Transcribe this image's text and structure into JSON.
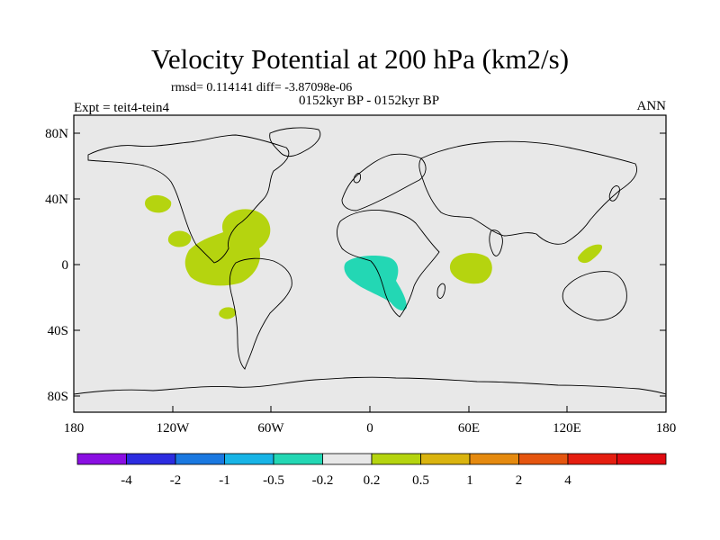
{
  "title": "Velocity Potential at 200 hPa (km2/s)",
  "stats_line": "rmsd= 0.114141 diff= -3.87098e-06",
  "period_line": "0152kyr BP - 0152kyr BP",
  "experiment": "Expt = teit4-tein4",
  "season": "ANN",
  "map": {
    "lat_ticks": [
      "80N",
      "40N",
      "0",
      "40S",
      "80S"
    ],
    "lon_ticks": [
      "180",
      "120W",
      "60W",
      "0",
      "60E",
      "120E",
      "180"
    ],
    "background_color": "#e8e8e8",
    "anomalies": [
      {
        "name": "positive-anomaly-npacific",
        "color": "#b5d40f"
      },
      {
        "name": "positive-anomaly-central-america",
        "color": "#b5d40f"
      },
      {
        "name": "negative-anomaly-atlantic",
        "color": "#23d7b4"
      },
      {
        "name": "positive-anomaly-indian-ocean",
        "color": "#b5d40f"
      }
    ]
  },
  "colorbar": {
    "colors": [
      "#8a0fe2",
      "#2c2ce0",
      "#1a78e0",
      "#18b4e6",
      "#23d7b4",
      "#e8e8e8",
      "#b5d40f",
      "#dab40f",
      "#e58a0f",
      "#e5550f",
      "#e51e10",
      "#e00a10"
    ],
    "labels": [
      "-4",
      "-2",
      "-1",
      "-0.5",
      "-0.2",
      "0.2",
      "0.5",
      "1",
      "2",
      "4"
    ]
  }
}
